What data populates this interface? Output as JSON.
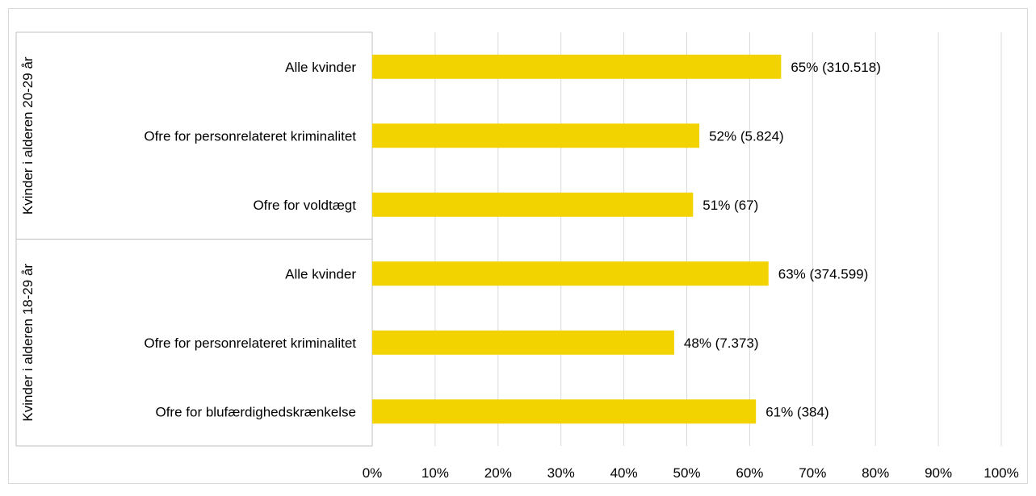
{
  "chart_data": {
    "type": "bar",
    "orientation": "horizontal",
    "groups": [
      {
        "label": "Kvinder i alderen 20-29 år",
        "categories": [
          "Alle kvinder",
          "Ofre for personrelateret kriminalitet",
          "Ofre for voldtægt"
        ],
        "values": [
          65,
          52,
          51
        ],
        "data_labels": [
          "65% (310.518)",
          "52% (5.824)",
          "51% (67)"
        ]
      },
      {
        "label": "Kvinder i alderen 18-29 år",
        "categories": [
          "Alle kvinder",
          "Ofre for personrelateret kriminalitet",
          "Ofre for blufærdighedskrænkelse"
        ],
        "values": [
          63,
          48,
          61
        ],
        "data_labels": [
          "63% (374.599)",
          "48% (7.373)",
          "61% (384)"
        ]
      }
    ],
    "x_ticks": [
      "0%",
      "10%",
      "20%",
      "30%",
      "40%",
      "50%",
      "60%",
      "70%",
      "80%",
      "90%",
      "100%"
    ],
    "xlim": [
      0,
      100
    ],
    "grid": "vertical",
    "legend": "none",
    "colors": {
      "bar": "#F2D300",
      "grid": "#D9D9D9",
      "axis": "#BFBFBF",
      "border": "#D9D9D9"
    }
  }
}
